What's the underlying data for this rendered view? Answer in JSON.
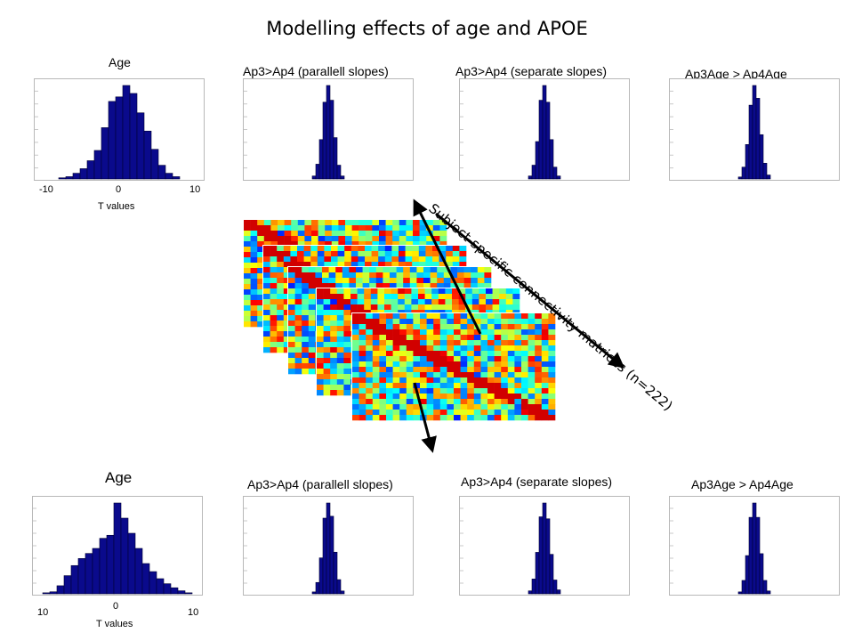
{
  "title": "Modelling effects of age and APOE",
  "top_row": {
    "labels": [
      "Age",
      "Ap3>Ap4 (parallell slopes)",
      "Ap3>Ap4 (separate slopes)",
      "Ap3Age > Ap4Age"
    ],
    "age_ticks": [
      "-10",
      "0",
      "10"
    ],
    "xlabel": "T values"
  },
  "bottom_row": {
    "labels": [
      "Age",
      "Ap3>Ap4 (parallell slopes)",
      "Ap3>Ap4 (separate slopes)",
      "Ap3Age > Ap4Age"
    ],
    "age_ticks": [
      "10",
      "0",
      "10"
    ],
    "xlabel": "T values"
  },
  "diagonal_label": "Subject-specific connectivity matrices (n=222)",
  "colors": {
    "bar": "#0a0a8c",
    "bar_edge": "#000033",
    "arrow": "#000000"
  },
  "chart_data": [
    {
      "type": "bar",
      "title": "Age",
      "xlabel": "T values",
      "xlim": [
        -12,
        12
      ],
      "x": [
        -8,
        -7,
        -6,
        -5,
        -4,
        -3,
        -2,
        -1,
        0,
        1,
        2,
        3,
        4,
        5,
        6,
        7,
        8
      ],
      "values": [
        1,
        2,
        5,
        9,
        16,
        25,
        45,
        68,
        72,
        82,
        75,
        58,
        42,
        26,
        12,
        5,
        2
      ]
    },
    {
      "type": "bar",
      "title": "Ap3>Ap4 (parallell slopes)",
      "xlim": [
        -12,
        12
      ],
      "x": [
        -2,
        -1.5,
        -1,
        -0.5,
        0,
        0.5,
        1,
        1.5,
        2
      ],
      "values": [
        3,
        15,
        40,
        78,
        95,
        80,
        42,
        14,
        3
      ]
    },
    {
      "type": "bar",
      "title": "Ap3>Ap4 (separate slopes)",
      "xlim": [
        -12,
        12
      ],
      "x": [
        -2,
        -1.5,
        -1,
        -0.5,
        0,
        0.5,
        1,
        1.5,
        2
      ],
      "values": [
        3,
        14,
        38,
        80,
        95,
        78,
        40,
        12,
        3
      ]
    },
    {
      "type": "bar",
      "title": "Ap3Age > Ap4Age",
      "xlim": [
        -12,
        12
      ],
      "x": [
        -2,
        -1.5,
        -1,
        -0.5,
        0,
        0.5,
        1,
        1.5,
        2
      ],
      "values": [
        2,
        12,
        35,
        75,
        95,
        82,
        45,
        16,
        4
      ]
    },
    {
      "type": "bar",
      "title": "Age",
      "xlabel": "T values",
      "xlim": [
        -12,
        12
      ],
      "x": [
        -10,
        -9,
        -8,
        -7,
        -6,
        -5,
        -4,
        -3,
        -2,
        -1,
        0,
        1,
        2,
        3,
        4,
        5,
        6,
        7,
        8,
        9,
        10
      ],
      "values": [
        1,
        2,
        8,
        18,
        28,
        35,
        40,
        45,
        55,
        58,
        90,
        75,
        60,
        45,
        30,
        22,
        15,
        10,
        6,
        3,
        1
      ]
    },
    {
      "type": "bar",
      "title": "Ap3>Ap4 (parallell slopes)",
      "xlim": [
        -12,
        12
      ],
      "x": [
        -2,
        -1.5,
        -1,
        -0.5,
        0,
        0.5,
        1,
        1.5,
        2
      ],
      "values": [
        2,
        12,
        38,
        80,
        96,
        82,
        44,
        15,
        3
      ]
    },
    {
      "type": "bar",
      "title": "Ap3>Ap4 (separate slopes)",
      "xlim": [
        -12,
        12
      ],
      "x": [
        -2,
        -1.5,
        -1,
        -0.5,
        0,
        0.5,
        1,
        1.5,
        2
      ],
      "values": [
        3,
        15,
        42,
        78,
        92,
        76,
        40,
        14,
        4
      ]
    },
    {
      "type": "bar",
      "title": "Ap3Age > Ap4Age",
      "xlim": [
        -12,
        12
      ],
      "x": [
        -2,
        -1.5,
        -1,
        -0.5,
        0,
        0.5,
        1,
        1.5,
        2
      ],
      "values": [
        2,
        14,
        40,
        80,
        95,
        80,
        42,
        14,
        3
      ]
    }
  ]
}
